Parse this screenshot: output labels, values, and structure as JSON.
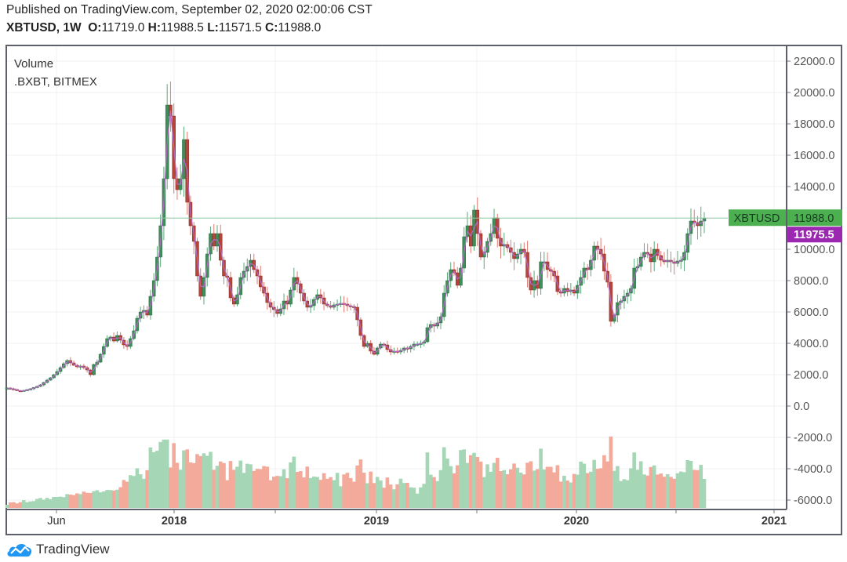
{
  "header": {
    "published": "Published on TradingView.com, September 02, 2020 02:00:06 CST",
    "symbol_interval": "XBTUSD, 1W",
    "ohlc": {
      "o_label": "O:",
      "o": "11719.0",
      "h_label": "H:",
      "h": "11988.5",
      "l_label": "L:",
      "l": "11571.5",
      "c_label": "C:",
      "c": "11988.0"
    }
  },
  "legend": {
    "line1": "Volume",
    "line2": ".BXBT, BITMEX"
  },
  "price_labels": {
    "symbol_tag": "XBTUSD",
    "last_price": "11988.0",
    "index_price": "11975.5",
    "last_color": "#4caf50",
    "index_color": "#9c27b0"
  },
  "footer": {
    "brand": "TradingView"
  },
  "colors": {
    "up": "#3e8e5a",
    "down": "#b5443b",
    "vol_up": "#a5d6b5",
    "vol_down": "#f4aa9a",
    "index_line": "#b36ac2",
    "grid": "#eef0f3",
    "axis_text": "#555"
  },
  "chart_data": {
    "type": "candlestick",
    "title": "XBTUSD, 1W",
    "symbol": "XBTUSD",
    "interval": "1W",
    "overlay": ".BXBT, BITMEX",
    "y_axis": {
      "ticks": [
        "22000.0",
        "20000.0",
        "18000.0",
        "16000.0",
        "14000.0",
        "12000.0",
        "10000.0",
        "8000.0",
        "6000.0",
        "4000.0",
        "2000.0",
        "0.0",
        "-2000.0",
        "-4000.0",
        "-6000.0"
      ],
      "range": [
        -6500,
        23000
      ]
    },
    "x_axis": {
      "ticks": [
        "Jun",
        "2018",
        "2019",
        "2020",
        "2021"
      ]
    },
    "grid": true,
    "last_price": 11988.0,
    "index_price": 11975.5,
    "weekly_closes": [
      1150,
      1100,
      1050,
      980,
      950,
      1000,
      1050,
      1100,
      1180,
      1250,
      1350,
      1500,
      1650,
      1800,
      2000,
      2200,
      2450,
      2700,
      2900,
      2750,
      2600,
      2500,
      2550,
      2450,
      2300,
      2000,
      2650,
      2800,
      3300,
      3800,
      4300,
      4400,
      4150,
      4500,
      4200,
      3900,
      3800,
      4300,
      4800,
      5600,
      6000,
      6100,
      5800,
      7000,
      8000,
      9500,
      11500,
      14500,
      19200,
      18500,
      14500,
      13800,
      14500,
      17000,
      13000,
      11500,
      10500,
      8300,
      7000,
      8200,
      9700,
      11000,
      10200,
      11000,
      9300,
      8300,
      8200,
      6900,
      6500,
      7100,
      8200,
      8600,
      8900,
      9300,
      8700,
      8300,
      7600,
      7200,
      6600,
      6300,
      6150,
      5900,
      6200,
      6700,
      6500,
      7400,
      8200,
      7800,
      7200,
      6700,
      6300,
      6400,
      6800,
      7100,
      6900,
      6500,
      6400,
      6300,
      6450,
      6500,
      6550,
      6500,
      6400,
      6350,
      6300,
      5500,
      4500,
      3800,
      4000,
      3500,
      3300,
      3700,
      3950,
      3900,
      3600,
      3450,
      3500,
      3450,
      3550,
      3700,
      3650,
      3800,
      3950,
      3950,
      4000,
      4100,
      5000,
      5200,
      5100,
      5300,
      5700,
      7200,
      8000,
      8700,
      8500,
      7700,
      8800,
      10800,
      11500,
      10200,
      12500,
      11000,
      9500,
      9800,
      10500,
      11000,
      12000,
      10700,
      10200,
      10300,
      10100,
      9800,
      9400,
      9700,
      10000,
      9800,
      8200,
      7400,
      8000,
      7500,
      9200,
      9200,
      8700,
      8600,
      8300,
      7300,
      7200,
      7500,
      7300,
      7400,
      7200,
      7700,
      8200,
      8800,
      8700,
      9300,
      10200,
      10000,
      9700,
      8600,
      7900,
      5400,
      5800,
      6600,
      6700,
      7000,
      7200,
      7500,
      8800,
      8900,
      9500,
      9800,
      9700,
      9200,
      10000,
      9600,
      9300,
      9200,
      9300,
      9200,
      9100,
      9250,
      9300,
      9800,
      11000,
      11800,
      11700,
      11500,
      11800,
      11988
    ]
  }
}
